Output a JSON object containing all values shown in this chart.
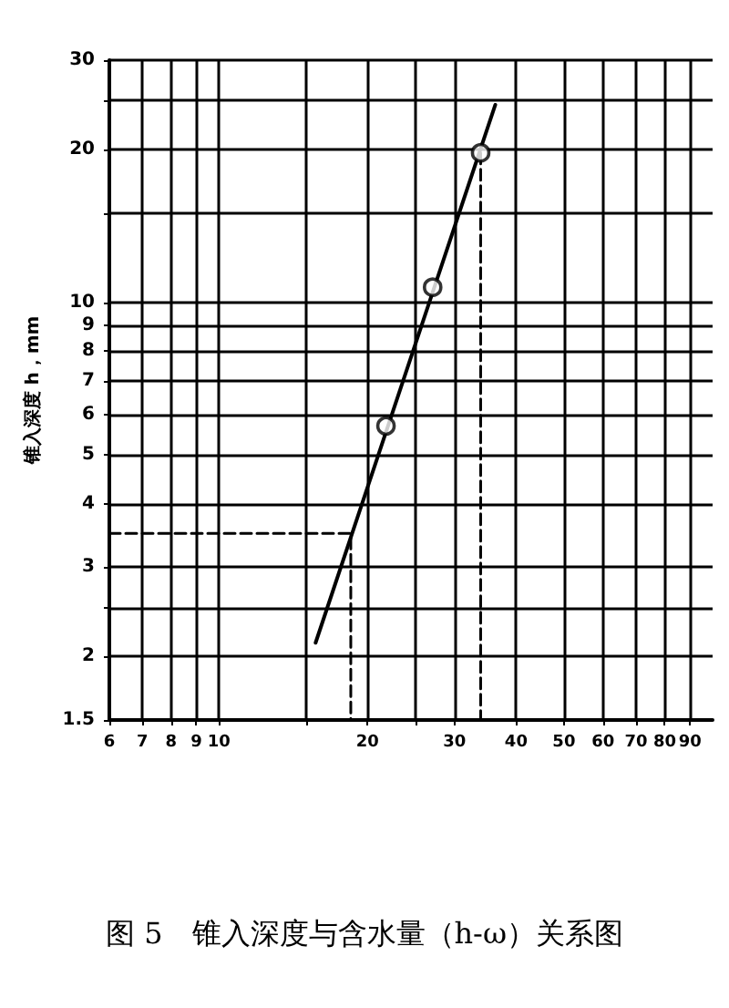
{
  "chart_data": {
    "type": "scatter",
    "title": "图 5　锥入深度与含水量（h-ω）关系图",
    "ylabel": "锥入深度 h，mm",
    "log": "xy",
    "grid": true,
    "xlim": [
      6,
      100
    ],
    "ylim": [
      1.5,
      30
    ],
    "xticks": [
      6,
      7,
      8,
      9,
      10,
      {
        "value": 15,
        "label": null
      },
      20,
      {
        "value": 25,
        "label": null
      },
      30,
      40,
      50,
      60,
      70,
      80,
      90
    ],
    "yticks": [
      1.5,
      2,
      {
        "value": 2.5,
        "label": null
      },
      3,
      4,
      5,
      6,
      7,
      8,
      9,
      10,
      {
        "value": 15,
        "label": null
      },
      20,
      {
        "value": 25,
        "label": null
      },
      30
    ],
    "series": [
      {
        "type": "line",
        "color": "#000000",
        "line_style": "solid",
        "marker": "none",
        "x": [
          15.7,
          36.3
        ],
        "values": [
          2.13,
          24.5
        ]
      },
      {
        "color": "#000000",
        "marker": "circle",
        "x": [
          21.8,
          27.1,
          33.9
        ],
        "values": [
          5.7,
          10.7,
          19.7
        ]
      },
      {
        "type": "line",
        "color": "#000000",
        "line_style": "dashed",
        "marker": "none",
        "x": [
          6,
          18.5,
          18.5
        ],
        "values": [
          3.5,
          3.5,
          1.5
        ]
      },
      {
        "type": "line",
        "color": "#000000",
        "line_style": "dashed",
        "marker": "none",
        "x": [
          33.9,
          33.9
        ],
        "values": [
          19.7,
          1.5
        ]
      }
    ]
  }
}
